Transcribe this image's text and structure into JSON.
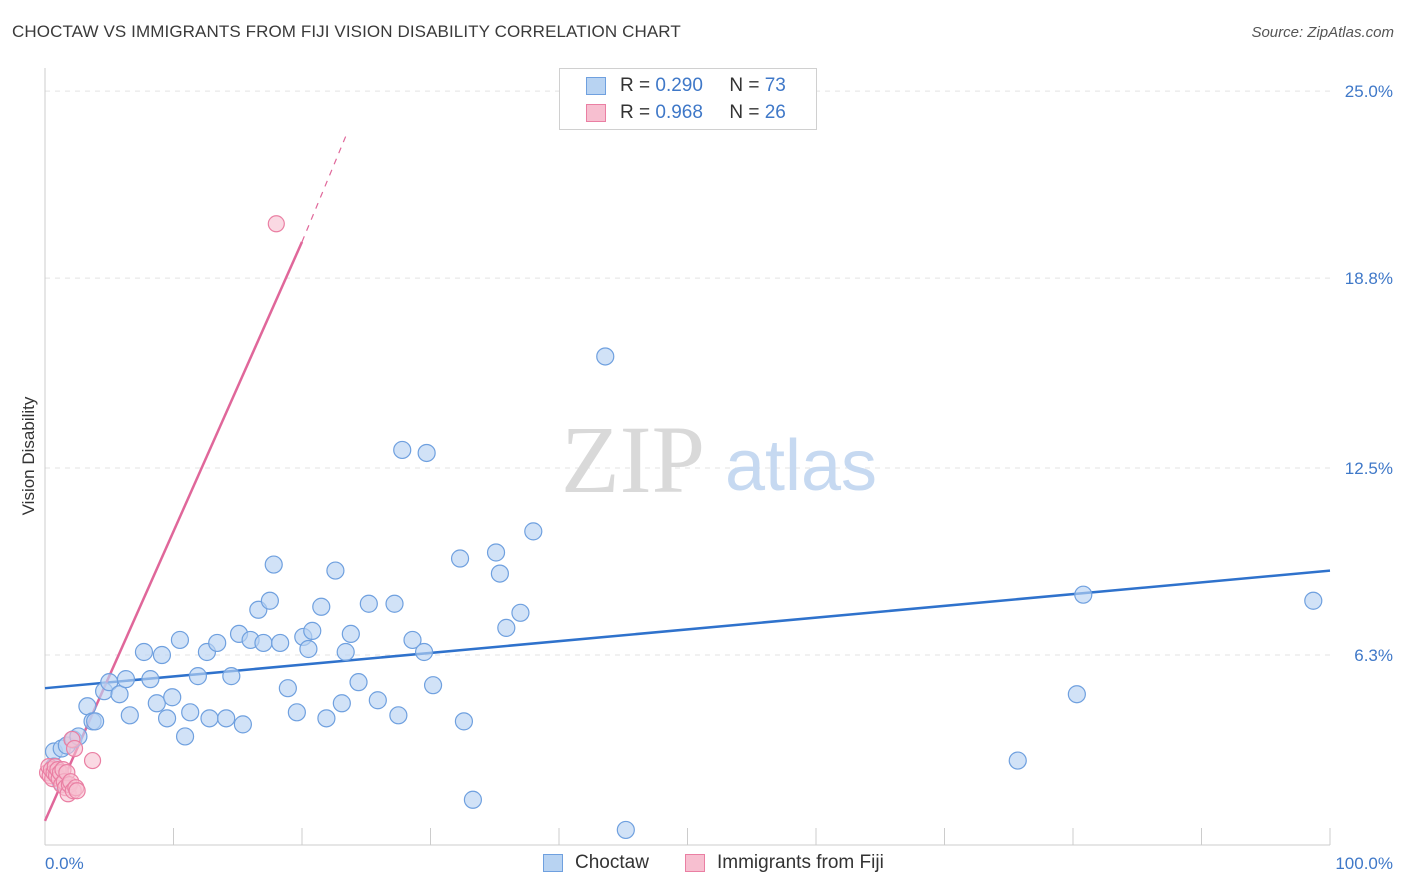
{
  "header": {
    "title": "CHOCTAW VS IMMIGRANTS FROM FIJI VISION DISABILITY CORRELATION CHART",
    "source": "Source: ZipAtlas.com"
  },
  "watermark": {
    "zip": "ZIP",
    "atlas": "atlas"
  },
  "legend_top": [
    {
      "r_label": "R =",
      "r_value": "0.290",
      "n_label": "N =",
      "n_value": "73"
    },
    {
      "r_label": "R =",
      "r_value": "0.968",
      "n_label": "N =",
      "n_value": "26"
    }
  ],
  "colors": {
    "choctaw_fill": "#b8d3f2",
    "choctaw_stroke": "#6fa0df",
    "choctaw_line": "#2f72cc",
    "fiji_fill": "#f7bfd0",
    "fiji_stroke": "#ea7fa3",
    "fiji_line": "#e0679a",
    "tick_label": "#3f78c8",
    "grid": "#e3e3e3"
  },
  "chart_data": {
    "type": "scatter",
    "title": "CHOCTAW VS IMMIGRANTS FROM FIJI VISION DISABILITY CORRELATION CHART",
    "xlabel": "",
    "ylabel": "Vision Disability",
    "xlim": [
      0,
      100
    ],
    "ylim": [
      0,
      25.6
    ],
    "x_tick_labels": [
      "0.0%",
      "100.0%"
    ],
    "y_ticks": [
      {
        "value": 6.3,
        "label": "6.3%"
      },
      {
        "value": 12.5,
        "label": "12.5%"
      },
      {
        "value": 18.8,
        "label": "18.8%"
      },
      {
        "value": 25.0,
        "label": "25.0%"
      }
    ],
    "grid": "horizontal dashed",
    "legend_placement": "top-center and bottom",
    "series": [
      {
        "name": "Choctaw",
        "r": 0.29,
        "n": 73,
        "trend": {
          "x": [
            0,
            100
          ],
          "y": [
            5.2,
            9.1
          ]
        },
        "points": [
          [
            0.7,
            3.1
          ],
          [
            0.7,
            2.6
          ],
          [
            1.3,
            3.2
          ],
          [
            1.7,
            3.3
          ],
          [
            2.2,
            3.5
          ],
          [
            2.6,
            3.6
          ],
          [
            3.3,
            4.6
          ],
          [
            3.7,
            4.1
          ],
          [
            3.9,
            4.1
          ],
          [
            4.6,
            5.1
          ],
          [
            5.0,
            5.4
          ],
          [
            5.8,
            5.0
          ],
          [
            6.3,
            5.5
          ],
          [
            6.6,
            4.3
          ],
          [
            7.7,
            6.4
          ],
          [
            8.2,
            5.5
          ],
          [
            8.7,
            4.7
          ],
          [
            9.1,
            6.3
          ],
          [
            9.5,
            4.2
          ],
          [
            9.9,
            4.9
          ],
          [
            10.5,
            6.8
          ],
          [
            10.9,
            3.6
          ],
          [
            11.3,
            4.4
          ],
          [
            11.9,
            5.6
          ],
          [
            12.6,
            6.4
          ],
          [
            12.8,
            4.2
          ],
          [
            13.4,
            6.7
          ],
          [
            14.1,
            4.2
          ],
          [
            14.5,
            5.6
          ],
          [
            15.1,
            7.0
          ],
          [
            15.4,
            4.0
          ],
          [
            16.0,
            6.8
          ],
          [
            16.6,
            7.8
          ],
          [
            17.0,
            6.7
          ],
          [
            17.5,
            8.1
          ],
          [
            17.8,
            9.3
          ],
          [
            18.3,
            6.7
          ],
          [
            18.9,
            5.2
          ],
          [
            19.6,
            4.4
          ],
          [
            20.1,
            6.9
          ],
          [
            20.5,
            6.5
          ],
          [
            20.8,
            7.1
          ],
          [
            21.5,
            7.9
          ],
          [
            21.9,
            4.2
          ],
          [
            22.6,
            9.1
          ],
          [
            23.1,
            4.7
          ],
          [
            23.4,
            6.4
          ],
          [
            23.8,
            7.0
          ],
          [
            24.4,
            5.4
          ],
          [
            25.2,
            8.0
          ],
          [
            25.9,
            4.8
          ],
          [
            27.2,
            8.0
          ],
          [
            27.5,
            4.3
          ],
          [
            27.8,
            13.1
          ],
          [
            28.6,
            6.8
          ],
          [
            29.5,
            6.4
          ],
          [
            29.7,
            13.0
          ],
          [
            30.2,
            5.3
          ],
          [
            32.3,
            9.5
          ],
          [
            32.6,
            4.1
          ],
          [
            33.3,
            1.5
          ],
          [
            35.1,
            9.7
          ],
          [
            35.4,
            9.0
          ],
          [
            35.9,
            7.2
          ],
          [
            37.0,
            7.7
          ],
          [
            38.0,
            10.4
          ],
          [
            43.6,
            16.2
          ],
          [
            45.2,
            0.5
          ],
          [
            75.7,
            2.8
          ],
          [
            80.3,
            5.0
          ],
          [
            80.8,
            8.3
          ],
          [
            98.7,
            8.1
          ],
          [
            1.2,
            2.1
          ]
        ]
      },
      {
        "name": "Immigrants from Fiji",
        "r": 0.968,
        "n": 26,
        "trend": {
          "x": [
            0,
            20.0
          ],
          "y": [
            0.8,
            20.0
          ]
        },
        "trend_dashed": {
          "x": [
            20.0,
            23.5
          ],
          "y": [
            20.0,
            23.6
          ]
        },
        "points": [
          [
            0.2,
            2.4
          ],
          [
            0.3,
            2.6
          ],
          [
            0.4,
            2.3
          ],
          [
            0.5,
            2.5
          ],
          [
            0.6,
            2.2
          ],
          [
            0.7,
            2.4
          ],
          [
            0.8,
            2.6
          ],
          [
            0.9,
            2.3
          ],
          [
            1.0,
            2.5
          ],
          [
            1.1,
            2.2
          ],
          [
            1.2,
            2.4
          ],
          [
            1.3,
            2.0
          ],
          [
            1.4,
            2.5
          ],
          [
            1.5,
            2.1
          ],
          [
            1.6,
            1.9
          ],
          [
            1.7,
            2.4
          ],
          [
            1.8,
            1.7
          ],
          [
            1.9,
            2.0
          ],
          [
            2.0,
            2.1
          ],
          [
            2.1,
            3.5
          ],
          [
            2.2,
            1.8
          ],
          [
            2.3,
            3.2
          ],
          [
            2.4,
            1.9
          ],
          [
            2.5,
            1.8
          ],
          [
            3.7,
            2.8
          ],
          [
            18.0,
            20.6
          ]
        ]
      }
    ]
  }
}
